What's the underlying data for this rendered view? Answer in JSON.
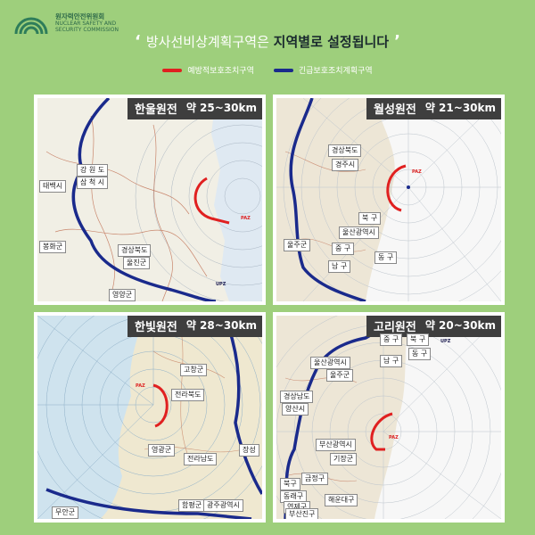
{
  "logo": {
    "name_ko": "원자력안전위원회",
    "name_en_line1": "NUCLEAR SAFETY AND",
    "name_en_line2": "SECURITY COMMISSION"
  },
  "headline": {
    "prefix": "방사선비상계획구역은",
    "emphasis": "지역별로 설정됩니다"
  },
  "legend": [
    {
      "label": "예방적보호조치구역",
      "color": "#e02020"
    },
    {
      "label": "긴급보호조치계획구역",
      "color": "#1a2a8c"
    }
  ],
  "panels": {
    "hanul": {
      "title": "한울원전",
      "range": "약 25~30km",
      "labels": [
        "강 원 도",
        "삼 척 시",
        "태백시",
        "봉화군",
        "경상북도",
        "울진군",
        "영양군"
      ],
      "paz": "PAZ",
      "upz": "UPZ"
    },
    "wolseong": {
      "title": "월성원전",
      "range": "약 21~30km",
      "labels": [
        "경상북도",
        "경주시",
        "북 구",
        "울산광역시",
        "울주군",
        "중 구",
        "동 구",
        "남 구"
      ],
      "paz": "PAZ"
    },
    "hanbit": {
      "title": "한빛원전",
      "range": "약 28~30km",
      "labels": [
        "고창군",
        "전라북도",
        "영광군",
        "전라남도",
        "장성",
        "무안군",
        "함평군",
        "광주광역시"
      ],
      "paz": "PAZ"
    },
    "kori": {
      "title": "고리원전",
      "range": "약 20~30km",
      "labels": [
        "중 구",
        "북 구",
        "동 구",
        "남 구",
        "울산광역시",
        "울주군",
        "경상남도",
        "양산시",
        "부산광역시",
        "기장군",
        "금정구",
        "북구",
        "동래구",
        "연제구",
        "해운대구",
        "부산진구"
      ],
      "paz": "PAZ",
      "upz": "UPZ"
    }
  }
}
